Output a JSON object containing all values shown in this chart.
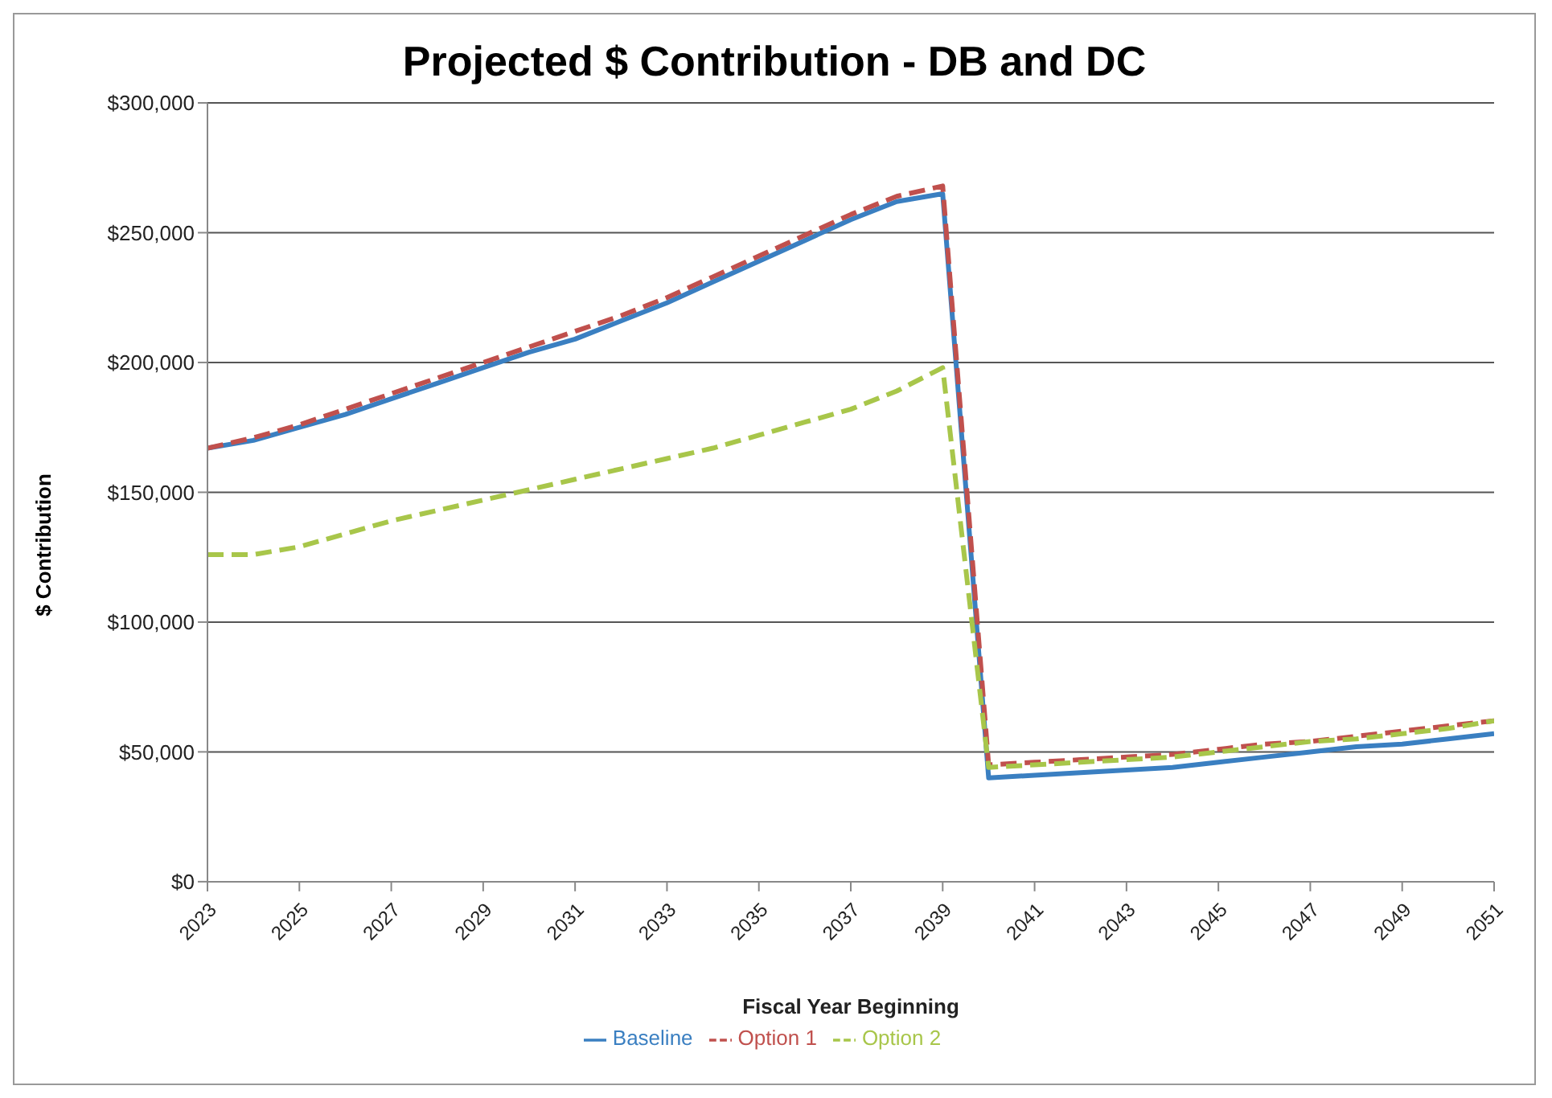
{
  "chart_data": {
    "type": "line",
    "title": "Projected $ Contribution - DB and DC",
    "xlabel": "Fiscal Year Beginning",
    "ylabel": "$ Contribution",
    "x": [
      2023,
      2024,
      2025,
      2026,
      2027,
      2028,
      2029,
      2030,
      2031,
      2032,
      2033,
      2034,
      2035,
      2036,
      2037,
      2038,
      2039,
      2040,
      2041,
      2042,
      2043,
      2044,
      2045,
      2046,
      2047,
      2048,
      2049,
      2050,
      2051
    ],
    "series": [
      {
        "name": "Baseline",
        "color": "#3a7fc1",
        "line_style": "solid",
        "values": [
          167000,
          170000,
          175000,
          180000,
          186000,
          192000,
          198000,
          204000,
          209000,
          216000,
          223000,
          231000,
          239000,
          247000,
          255000,
          262000,
          265000,
          40000,
          41000,
          42000,
          43000,
          44000,
          46000,
          48000,
          50000,
          52000,
          53000,
          55000,
          57000
        ]
      },
      {
        "name": "Option 1",
        "color": "#c0504d",
        "line_style": "dashed",
        "values": [
          167000,
          171000,
          176000,
          182000,
          188000,
          194000,
          200000,
          206000,
          212000,
          218000,
          225000,
          233000,
          241000,
          249000,
          257000,
          264000,
          268000,
          45000,
          46000,
          47000,
          48000,
          49000,
          51000,
          53000,
          54000,
          56000,
          58000,
          60000,
          62000
        ]
      },
      {
        "name": "Option 2",
        "color": "#a8c64a",
        "line_style": "dashed",
        "values": [
          126000,
          126000,
          129000,
          134000,
          139000,
          143000,
          147000,
          151000,
          155000,
          159000,
          163000,
          167000,
          172000,
          177000,
          182000,
          189000,
          198000,
          44000,
          45000,
          46000,
          47000,
          48000,
          50000,
          52000,
          54000,
          55000,
          57000,
          59000,
          62000
        ]
      }
    ],
    "xlim": [
      2023,
      2051
    ],
    "xticks": [
      2023,
      2025,
      2027,
      2029,
      2031,
      2033,
      2035,
      2037,
      2039,
      2041,
      2043,
      2045,
      2047,
      2049,
      2051
    ],
    "ylim": [
      0,
      300000
    ],
    "yticks": [
      {
        "value": 0,
        "label": "$0"
      },
      {
        "value": 50000,
        "label": "$50,000"
      },
      {
        "value": 100000,
        "label": "$100,000"
      },
      {
        "value": 150000,
        "label": "$150,000"
      },
      {
        "value": 200000,
        "label": "$200,000"
      },
      {
        "value": 250000,
        "label": "$250,000"
      },
      {
        "value": 300000,
        "label": "$300,000"
      }
    ],
    "grid": "y",
    "legend": "bottom",
    "marker": "none"
  }
}
